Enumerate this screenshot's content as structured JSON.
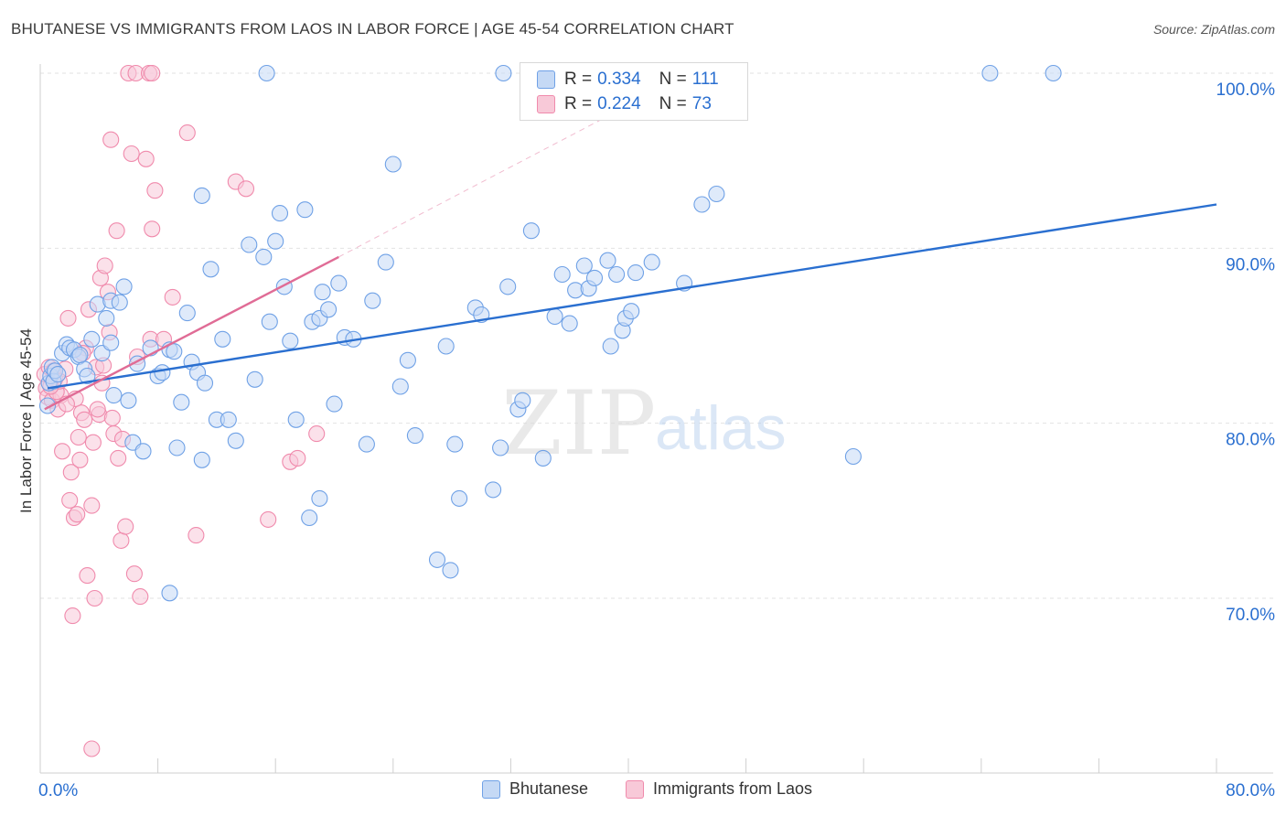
{
  "title": "BHUTANESE VS IMMIGRANTS FROM LAOS IN LABOR FORCE | AGE 45-54 CORRELATION CHART",
  "source": "Source: ZipAtlas.com",
  "watermark": {
    "zip": "ZIP",
    "atlas": "atlas"
  },
  "legend_top": [
    {
      "r_label": "R =",
      "r_value": "0.334",
      "n_label": "N =",
      "n_value": "111"
    },
    {
      "r_label": "R =",
      "r_value": "0.224",
      "n_label": "N =",
      "n_value": "73"
    }
  ],
  "chart_data": {
    "type": "scatter",
    "ylabel": "In Labor Force | Age 45-54",
    "xlim": [
      0,
      80
    ],
    "ylim": [
      60.5,
      102
    ],
    "x_tick_labels": [
      "0.0%",
      "80.0%"
    ],
    "y_ticks": [
      70,
      80,
      90,
      100
    ],
    "y_tick_labels": [
      "70.0%",
      "80.0%",
      "90.0%",
      "100.0%"
    ],
    "grid": true,
    "legend_position": "bottom",
    "series": [
      {
        "name": "Bhutanese",
        "color": "#6fa1e6",
        "fill": "#c5d9f5",
        "line_color": "#2a6fd0",
        "trend": {
          "x": [
            0.5,
            80
          ],
          "y": [
            82.0,
            92.5
          ]
        },
        "points": [
          [
            0.5,
            81.0
          ],
          [
            0.6,
            82.3
          ],
          [
            0.7,
            82.7
          ],
          [
            0.8,
            83.2
          ],
          [
            0.9,
            82.4
          ],
          [
            1.0,
            83.0
          ],
          [
            1.2,
            82.8
          ],
          [
            1.5,
            84.0
          ],
          [
            1.8,
            84.5
          ],
          [
            2.0,
            84.3
          ],
          [
            2.3,
            84.2
          ],
          [
            2.6,
            83.8
          ],
          [
            3.0,
            83.1
          ],
          [
            3.2,
            82.7
          ],
          [
            3.5,
            84.8
          ],
          [
            3.9,
            86.8
          ],
          [
            4.2,
            84.0
          ],
          [
            4.5,
            86.0
          ],
          [
            4.8,
            87.0
          ],
          [
            5.0,
            81.6
          ],
          [
            5.4,
            86.9
          ],
          [
            5.7,
            87.8
          ],
          [
            6.0,
            81.3
          ],
          [
            6.3,
            78.9
          ],
          [
            6.6,
            83.4
          ],
          [
            7.0,
            78.4
          ],
          [
            7.5,
            84.3
          ],
          [
            8.0,
            82.7
          ],
          [
            8.3,
            82.9
          ],
          [
            8.8,
            84.2
          ],
          [
            9.1,
            84.1
          ],
          [
            9.3,
            78.6
          ],
          [
            9.6,
            81.2
          ],
          [
            10.0,
            86.3
          ],
          [
            10.3,
            83.5
          ],
          [
            10.7,
            82.9
          ],
          [
            11.0,
            77.9
          ],
          [
            11.2,
            82.3
          ],
          [
            11.6,
            88.8
          ],
          [
            12.0,
            80.2
          ],
          [
            12.4,
            84.8
          ],
          [
            12.8,
            80.2
          ],
          [
            13.3,
            79.0
          ],
          [
            14.2,
            90.2
          ],
          [
            14.6,
            82.5
          ],
          [
            15.2,
            89.5
          ],
          [
            15.6,
            85.8
          ],
          [
            16.0,
            90.4
          ],
          [
            16.3,
            92.0
          ],
          [
            16.6,
            87.8
          ],
          [
            17.0,
            84.7
          ],
          [
            17.4,
            80.2
          ],
          [
            18.0,
            92.2
          ],
          [
            18.5,
            85.8
          ],
          [
            19.0,
            86.0
          ],
          [
            19.2,
            87.5
          ],
          [
            19.6,
            86.5
          ],
          [
            20.0,
            81.1
          ],
          [
            20.3,
            88.0
          ],
          [
            20.7,
            84.9
          ],
          [
            21.3,
            84.8
          ],
          [
            22.2,
            78.8
          ],
          [
            22.6,
            87.0
          ],
          [
            23.5,
            89.2
          ],
          [
            24.0,
            94.8
          ],
          [
            24.5,
            82.1
          ],
          [
            25.0,
            83.6
          ],
          [
            25.5,
            79.3
          ],
          [
            27.0,
            72.2
          ],
          [
            27.6,
            84.4
          ],
          [
            27.9,
            71.6
          ],
          [
            28.2,
            78.8
          ],
          [
            28.5,
            75.7
          ],
          [
            29.6,
            86.6
          ],
          [
            30.0,
            86.2
          ],
          [
            30.8,
            76.2
          ],
          [
            31.3,
            78.6
          ],
          [
            31.8,
            87.8
          ],
          [
            32.5,
            80.8
          ],
          [
            32.8,
            81.3
          ],
          [
            33.4,
            91.0
          ],
          [
            34.2,
            78.0
          ],
          [
            35.0,
            86.1
          ],
          [
            35.5,
            88.5
          ],
          [
            36.0,
            85.7
          ],
          [
            36.4,
            87.6
          ],
          [
            37.0,
            89.0
          ],
          [
            37.3,
            87.7
          ],
          [
            37.7,
            88.3
          ],
          [
            38.6,
            89.3
          ],
          [
            38.8,
            84.4
          ],
          [
            39.2,
            88.5
          ],
          [
            39.6,
            85.3
          ],
          [
            39.8,
            86.0
          ],
          [
            40.2,
            86.4
          ],
          [
            40.5,
            88.6
          ],
          [
            41.6,
            89.2
          ],
          [
            43.8,
            88.0
          ],
          [
            45.0,
            92.5
          ],
          [
            46.0,
            93.1
          ],
          [
            11.0,
            93.0
          ],
          [
            15.4,
            100.0
          ],
          [
            31.5,
            100.0
          ],
          [
            55.3,
            78.1
          ],
          [
            64.6,
            100.0
          ],
          [
            68.9,
            100.0
          ],
          [
            8.8,
            70.3
          ],
          [
            18.3,
            74.6
          ],
          [
            19.0,
            75.7
          ],
          [
            4.8,
            84.6
          ],
          [
            2.7,
            83.9
          ]
        ]
      },
      {
        "name": "Immigrants from Laos",
        "color": "#f08aac",
        "fill": "#f8c9d8",
        "line_color": "#e06c96",
        "trend": {
          "x": [
            0.3,
            20.3
          ],
          "y": [
            80.8,
            89.5
          ]
        },
        "dash": {
          "x": [
            20.3,
            41.0
          ],
          "y": [
            89.5,
            98.6
          ]
        },
        "points": [
          [
            0.3,
            82.8
          ],
          [
            0.4,
            82.0
          ],
          [
            0.5,
            81.5
          ],
          [
            0.6,
            83.2
          ],
          [
            0.8,
            81.3
          ],
          [
            1.0,
            82.5
          ],
          [
            1.2,
            80.8
          ],
          [
            1.4,
            81.6
          ],
          [
            1.5,
            78.4
          ],
          [
            1.7,
            83.1
          ],
          [
            1.9,
            86.0
          ],
          [
            2.0,
            75.6
          ],
          [
            2.1,
            77.2
          ],
          [
            2.3,
            74.6
          ],
          [
            2.5,
            74.8
          ],
          [
            2.6,
            79.2
          ],
          [
            2.7,
            77.9
          ],
          [
            2.8,
            80.6
          ],
          [
            3.0,
            80.2
          ],
          [
            3.2,
            71.3
          ],
          [
            3.3,
            86.5
          ],
          [
            3.5,
            75.3
          ],
          [
            3.6,
            78.9
          ],
          [
            3.7,
            70.0
          ],
          [
            3.8,
            83.2
          ],
          [
            4.0,
            80.5
          ],
          [
            4.1,
            88.3
          ],
          [
            4.3,
            83.3
          ],
          [
            4.4,
            89.0
          ],
          [
            4.6,
            87.5
          ],
          [
            4.7,
            85.2
          ],
          [
            4.8,
            96.2
          ],
          [
            4.9,
            80.3
          ],
          [
            5.0,
            79.4
          ],
          [
            5.2,
            91.0
          ],
          [
            5.3,
            78.0
          ],
          [
            5.5,
            73.3
          ],
          [
            5.8,
            74.1
          ],
          [
            6.2,
            95.4
          ],
          [
            6.4,
            71.4
          ],
          [
            6.8,
            70.1
          ],
          [
            7.2,
            95.1
          ],
          [
            7.5,
            84.8
          ],
          [
            7.6,
            91.1
          ],
          [
            7.8,
            93.3
          ],
          [
            8.4,
            84.8
          ],
          [
            9.0,
            87.2
          ],
          [
            10.0,
            96.6
          ],
          [
            10.6,
            73.6
          ],
          [
            13.3,
            93.8
          ],
          [
            14.0,
            93.4
          ],
          [
            15.5,
            74.5
          ],
          [
            17.0,
            77.8
          ],
          [
            17.5,
            78.0
          ],
          [
            18.8,
            79.4
          ],
          [
            2.2,
            69.0
          ],
          [
            3.5,
            61.4
          ],
          [
            6.0,
            100.0
          ],
          [
            6.5,
            100.0
          ],
          [
            7.4,
            100.0
          ],
          [
            7.6,
            100.0
          ],
          [
            3.1,
            84.3
          ],
          [
            1.1,
            81.8
          ],
          [
            0.9,
            83.0
          ],
          [
            1.3,
            82.4
          ],
          [
            2.4,
            81.4
          ],
          [
            2.9,
            84.0
          ],
          [
            3.9,
            80.8
          ],
          [
            5.6,
            79.1
          ],
          [
            4.2,
            82.3
          ],
          [
            6.6,
            83.8
          ],
          [
            1.8,
            81.1
          ],
          [
            0.7,
            82.1
          ]
        ]
      }
    ]
  }
}
